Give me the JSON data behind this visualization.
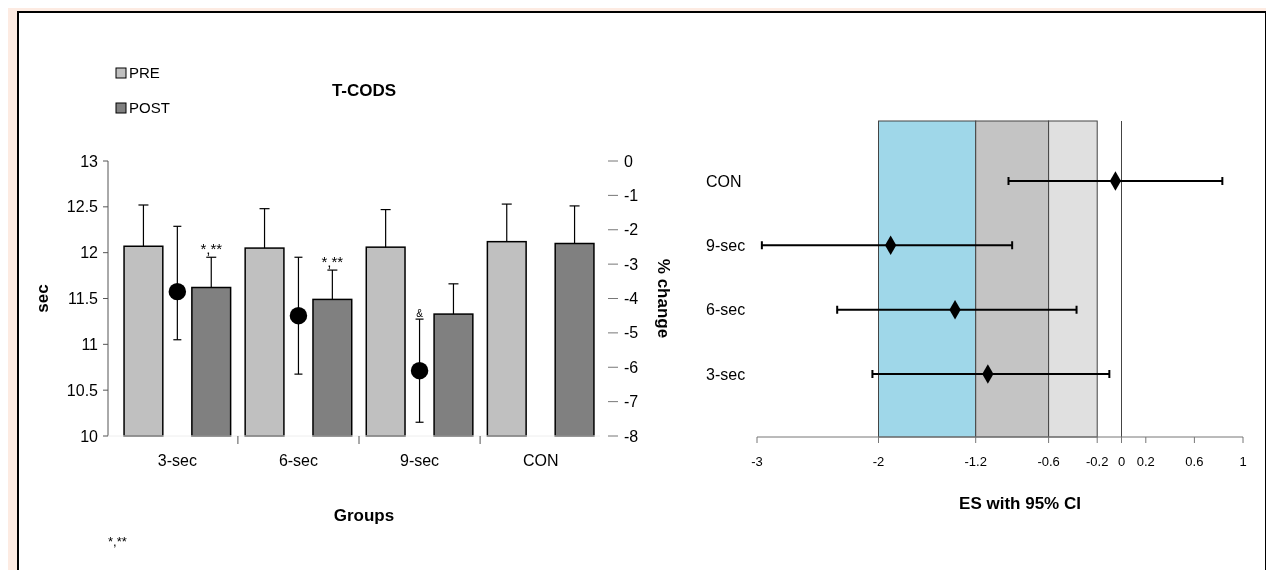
{
  "chart_data": [
    {
      "type": "bar",
      "title": "T-CODS",
      "xlabel": "Groups",
      "ylabel": "sec",
      "y2label": "% change",
      "categories": [
        "3-sec",
        "6-sec",
        "9-sec",
        "CON"
      ],
      "series": [
        {
          "name": "PRE",
          "color": "#c0c0c0",
          "values": [
            12.07,
            12.05,
            12.06,
            12.12
          ],
          "errors": [
            [
              12.07,
              12.52
            ],
            [
              12.05,
              12.48
            ],
            [
              12.06,
              12.47
            ],
            [
              12.12,
              12.53
            ]
          ]
        },
        {
          "name": "POST",
          "color": "#808080",
          "values": [
            11.62,
            11.49,
            11.33,
            12.1
          ],
          "errors": [
            [
              11.62,
              11.95
            ],
            [
              11.49,
              11.81
            ],
            [
              11.33,
              11.66
            ],
            [
              12.1,
              12.51
            ]
          ]
        },
        {
          "type": "scatter",
          "axis": "y2",
          "color": "#000000",
          "x": [
            "3-sec",
            "6-sec",
            "9-sec",
            "CON"
          ],
          "values": [
            -3.8,
            -4.5,
            -6.1,
            null
          ],
          "errors": [
            [
              -5.2,
              -1.9
            ],
            [
              -6.2,
              -2.8
            ],
            [
              -7.6,
              -4.6
            ],
            null
          ]
        }
      ],
      "ylim": [
        10,
        13
      ],
      "yticks": [
        10,
        10.5,
        11,
        11.5,
        12,
        12.5,
        13
      ],
      "y2lim": [
        -8,
        0
      ],
      "y2ticks": [
        -8,
        -7,
        -6,
        -5,
        -4,
        -3,
        -2,
        -1,
        0
      ],
      "marker": "circle",
      "legend": "top left",
      "annotations": [
        {
          "text": "*,**",
          "x": "3-sec",
          "y": 11.95
        },
        {
          "text": "*,**",
          "x": "6-sec",
          "y": 11.81
        },
        {
          "text": "&",
          "x": "9-sec",
          "y": 11.27
        },
        "*,**"
      ]
    },
    {
      "type": "scatter",
      "orientation": "horizontal",
      "xlabel": "ES with 95% CI",
      "categories": [
        "CON",
        "9-sec",
        "6-sec",
        "3-sec"
      ],
      "values": [
        -0.05,
        -1.9,
        -1.37,
        -1.1
      ],
      "errors": [
        [
          -0.93,
          0.83
        ],
        [
          -2.96,
          -0.9
        ],
        [
          -2.34,
          -0.37
        ],
        [
          -2.05,
          -0.1
        ]
      ],
      "color": "#000000",
      "marker": "diamond",
      "xlim": [
        -3,
        1
      ],
      "xticks": [
        -3,
        -2,
        -1.2,
        -0.6,
        -0.2,
        0,
        0.2,
        0.6,
        1
      ],
      "bands": [
        {
          "axis": "x",
          "from": -2,
          "to": -1.2,
          "color": "#9fd7e9"
        },
        {
          "axis": "x",
          "from": -1.2,
          "to": -0.6,
          "color": "#c4c4c4"
        },
        {
          "axis": "x",
          "from": -0.6,
          "to": -0.2,
          "color": "#e0e0e0"
        }
      ],
      "ref_lines": [
        {
          "axis": "x",
          "value": 0
        }
      ]
    }
  ]
}
